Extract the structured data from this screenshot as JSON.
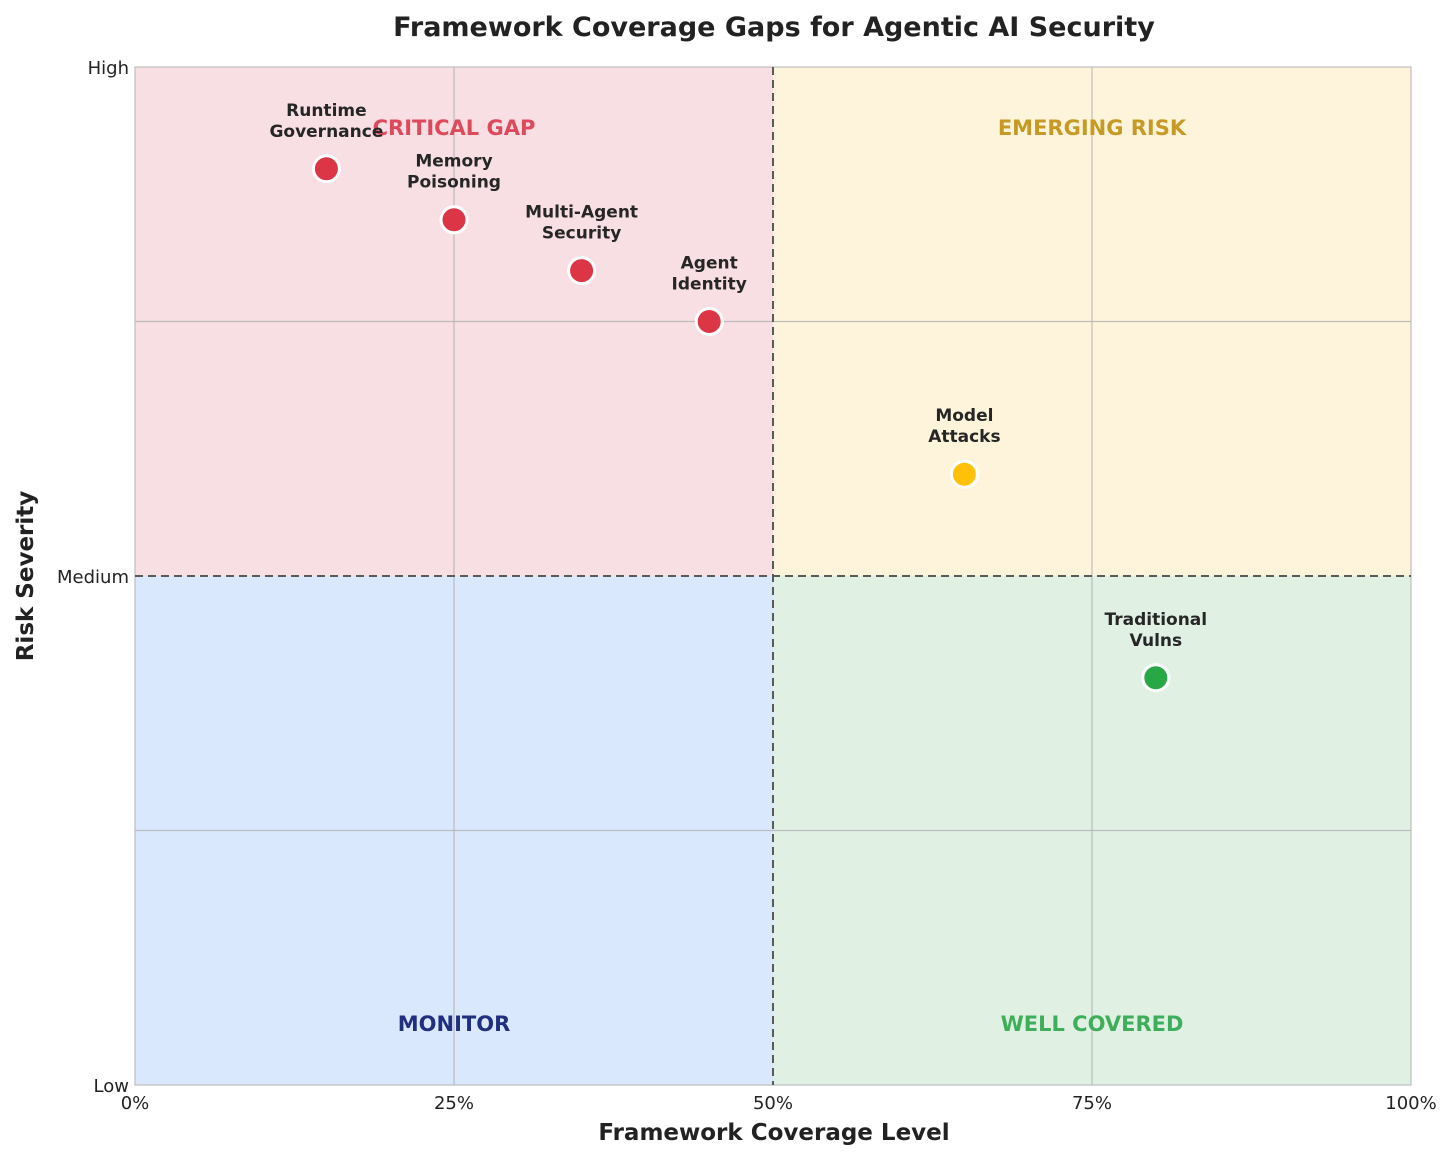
{
  "chart_data": {
    "type": "scatter",
    "title": "Framework Coverage Gaps for Agentic AI Security",
    "xlabel": "Framework Coverage Level",
    "ylabel": "Risk Severity",
    "xlim": [
      0,
      100
    ],
    "ylim": [
      0,
      100
    ],
    "grid": true,
    "x_ticks": [
      {
        "value": 0,
        "label": "0%"
      },
      {
        "value": 25,
        "label": "25%"
      },
      {
        "value": 50,
        "label": "50%"
      },
      {
        "value": 75,
        "label": "75%"
      },
      {
        "value": 100,
        "label": "100%"
      }
    ],
    "y_ticks": [
      {
        "value": 0,
        "label": "Low"
      },
      {
        "value": 50,
        "label": "Medium"
      },
      {
        "value": 100,
        "label": "High"
      }
    ],
    "quadrants": [
      {
        "label": "CRITICAL GAP",
        "x_range": [
          0,
          50
        ],
        "y_range": [
          50,
          100
        ],
        "fill": "#f8dfe3",
        "label_color": "#dc4a5c",
        "label_x": 25,
        "label_y": 94
      },
      {
        "label": "EMERGING RISK",
        "x_range": [
          50,
          100
        ],
        "y_range": [
          50,
          100
        ],
        "fill": "#fef4db",
        "label_color": "#c79a26",
        "label_x": 75,
        "label_y": 94
      },
      {
        "label": "MONITOR",
        "x_range": [
          0,
          50
        ],
        "y_range": [
          0,
          50
        ],
        "fill": "#dae8fd",
        "label_color": "#20307f",
        "label_x": 25,
        "label_y": 6
      },
      {
        "label": "WELL COVERED",
        "x_range": [
          50,
          100
        ],
        "y_range": [
          0,
          50
        ],
        "fill": "#e0f1e3",
        "label_color": "#3fae5a",
        "label_x": 75,
        "label_y": 6
      }
    ],
    "points": [
      {
        "label_lines": [
          "Runtime",
          "Governance"
        ],
        "x": 15,
        "y": 90,
        "color": "#dc3545"
      },
      {
        "label_lines": [
          "Memory",
          "Poisoning"
        ],
        "x": 25,
        "y": 85,
        "color": "#dc3545"
      },
      {
        "label_lines": [
          "Multi-Agent",
          "Security"
        ],
        "x": 35,
        "y": 80,
        "color": "#dc3545"
      },
      {
        "label_lines": [
          "Agent",
          "Identity"
        ],
        "x": 45,
        "y": 75,
        "color": "#dc3545"
      },
      {
        "label_lines": [
          "Model",
          "Attacks"
        ],
        "x": 65,
        "y": 60,
        "color": "#ffc107"
      },
      {
        "label_lines": [
          "Traditional",
          "Vulns"
        ],
        "x": 80,
        "y": 40,
        "color": "#28a745"
      }
    ]
  }
}
